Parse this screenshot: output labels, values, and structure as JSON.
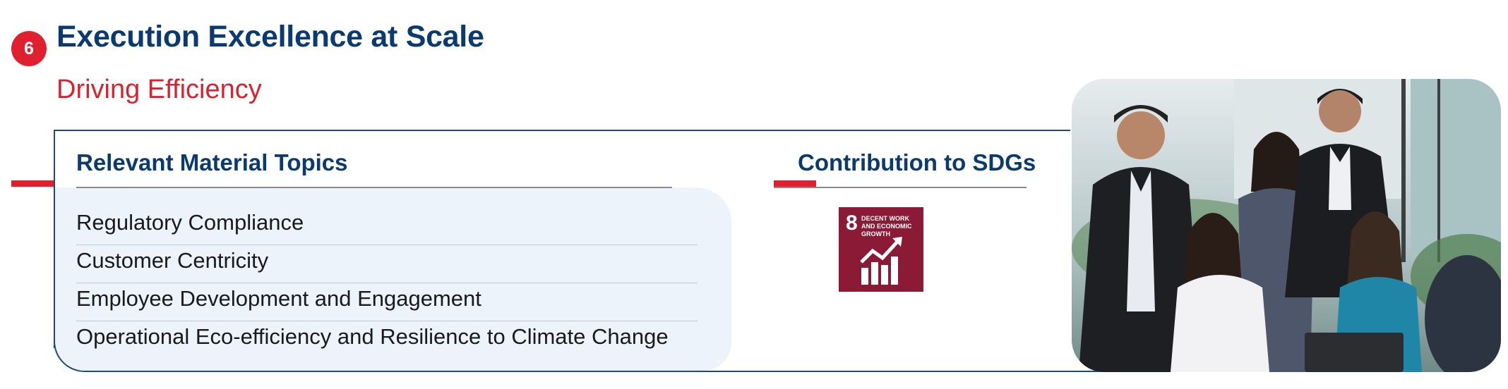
{
  "section": {
    "number": "6",
    "title": "Execution Excellence at Scale",
    "subtitle": "Driving Efficiency"
  },
  "material_topics": {
    "heading": "Relevant Material Topics",
    "items": [
      "Regulatory Compliance",
      "Customer Centricity",
      "Employee Development and Engagement",
      "Operational Eco-efficiency and Resilience to Climate Change"
    ]
  },
  "sdgs": {
    "heading": "Contribution to SDGs",
    "goal": {
      "number": "8",
      "label": "DECENT WORK AND ECONOMIC GROWTH",
      "color": "#8b1a37",
      "icon": "growth-chart-icon"
    }
  },
  "colors": {
    "navy": "#0b3a6e",
    "red": "#d8232f",
    "panel": "#edf3fa"
  },
  "photo": {
    "subject": "team-of-colleagues-photo"
  }
}
